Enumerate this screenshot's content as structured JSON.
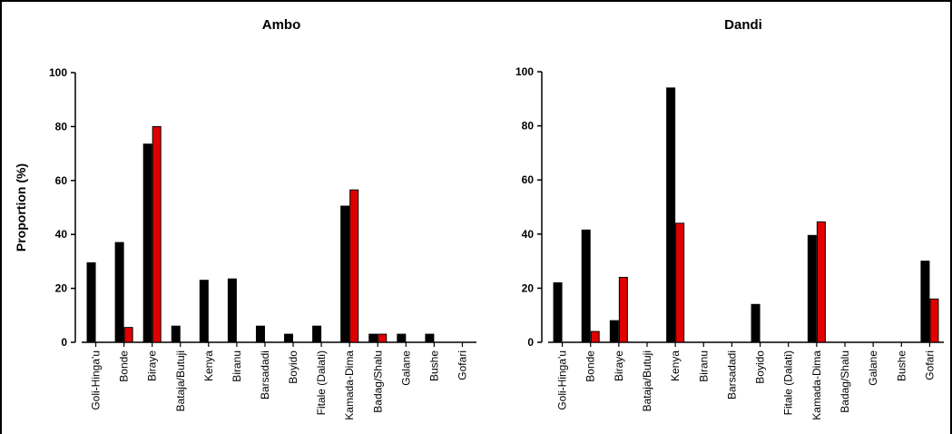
{
  "chart_data": [
    {
      "type": "bar",
      "title": "Ambo",
      "ylabel": "Proportion (%)",
      "ylim": [
        0,
        100
      ],
      "yticks": [
        "0",
        "20",
        "40",
        "60",
        "80",
        "100"
      ],
      "categories": [
        "Goli-Hinga'u",
        "Bonde",
        "Biraye",
        "Bataja/Butuji",
        "Kenya",
        "Biranu",
        "Barsadadi",
        "Boyido",
        "Fitale (Dalati)",
        "Kamada-Dima",
        "Badag/Shalu",
        "Galane",
        "Bushe",
        "Gofari"
      ],
      "series": [
        {
          "color": "#000000",
          "values": [
            29.5,
            37,
            73.5,
            6,
            23,
            23.5,
            6,
            3,
            6,
            50.5,
            3,
            3,
            3,
            0
          ]
        },
        {
          "color": "#e00000",
          "values": [
            0,
            5.5,
            80,
            0,
            0,
            0,
            0,
            0,
            0,
            56.5,
            3,
            0,
            0,
            0
          ]
        }
      ]
    },
    {
      "type": "bar",
      "title": "Dandi",
      "ylabel": "",
      "ylim": [
        0,
        100
      ],
      "yticks": [
        "0",
        "20",
        "40",
        "60",
        "80",
        "100"
      ],
      "categories": [
        "Goli-Hinga'u",
        "Bonde",
        "Biraye",
        "Bataja/Butuji",
        "Kenya",
        "Biranu",
        "Barsadadi",
        "Boyido",
        "Fitale (Dalati)",
        "Kamada-Dima",
        "Badag/Shalu",
        "Galane",
        "Bushe",
        "Gofari"
      ],
      "series": [
        {
          "color": "#000000",
          "values": [
            22,
            41.5,
            8,
            0,
            94,
            0,
            0,
            14,
            0,
            39.5,
            0,
            0,
            0,
            30
          ]
        },
        {
          "color": "#e00000",
          "values": [
            0,
            4,
            24,
            0,
            44,
            0,
            0,
            0,
            0,
            44.5,
            0,
            0,
            0,
            16
          ]
        }
      ]
    }
  ]
}
